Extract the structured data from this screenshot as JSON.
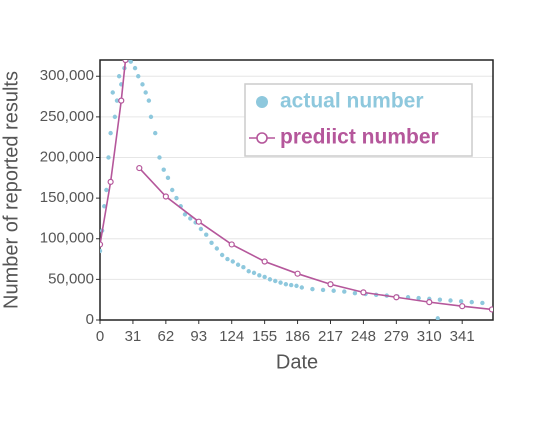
{
  "chart_data": {
    "type": "scatter_line",
    "xlabel": "Date",
    "ylabel": "Number of  reported results",
    "xlim": [
      0,
      370
    ],
    "ylim": [
      0,
      320000
    ],
    "xticks": [
      0,
      31,
      62,
      93,
      124,
      155,
      186,
      217,
      248,
      279,
      310,
      341
    ],
    "yticks": [
      0,
      {
        "value": 50000,
        "label": "50,000"
      },
      {
        "value": 100000,
        "label": "100,000"
      },
      {
        "value": 150000,
        "label": "150,000"
      },
      {
        "value": 200000,
        "label": "200,000"
      },
      {
        "value": 250000,
        "label": "250,000"
      },
      {
        "value": 300000,
        "label": "300,000"
      }
    ],
    "grid": true,
    "legend": "upper right",
    "series": [
      {
        "name": "actual number",
        "kind": "scatter",
        "color": "#8ec8dd",
        "x": [
          0,
          2,
          4,
          6,
          8,
          10,
          12,
          14,
          16,
          18,
          20,
          23,
          26,
          29,
          33,
          36,
          40,
          43,
          46,
          48,
          52,
          56,
          60,
          64,
          68,
          72,
          76,
          80,
          85,
          90,
          95,
          100,
          105,
          110,
          115,
          120,
          125,
          130,
          135,
          140,
          145,
          150,
          155,
          160,
          165,
          170,
          175,
          180,
          185,
          190,
          200,
          210,
          220,
          230,
          240,
          250,
          260,
          270,
          280,
          290,
          300,
          310,
          318,
          320,
          330,
          340,
          350,
          360
        ],
        "values": [
          85000,
          110000,
          140000,
          160000,
          200000,
          230000,
          280000,
          250000,
          270000,
          300000,
          290000,
          310000,
          320000,
          318000,
          310000,
          300000,
          290000,
          280000,
          270000,
          250000,
          230000,
          200000,
          185000,
          175000,
          160000,
          150000,
          140000,
          130000,
          125000,
          120000,
          112000,
          105000,
          95000,
          88000,
          80000,
          75000,
          72000,
          68000,
          65000,
          60000,
          58000,
          55000,
          53000,
          50000,
          48000,
          46000,
          44000,
          43000,
          42000,
          40000,
          38000,
          37000,
          36000,
          35000,
          33000,
          32000,
          31000,
          30000,
          29000,
          28000,
          27000,
          26000,
          2000,
          25000,
          24000,
          23000,
          22000,
          21000
        ]
      },
      {
        "name": "prediict number",
        "kind": "line",
        "color": "#b5579b",
        "x": [
          0,
          10,
          20,
          24,
          30,
          37,
          62,
          93,
          124,
          155,
          186,
          217,
          248,
          279,
          310,
          341,
          369
        ],
        "values": [
          93000,
          170000,
          270000,
          320000,
          null,
          187000,
          152000,
          121000,
          93000,
          72000,
          57000,
          44000,
          34000,
          28000,
          22000,
          17000,
          13000
        ]
      }
    ]
  }
}
